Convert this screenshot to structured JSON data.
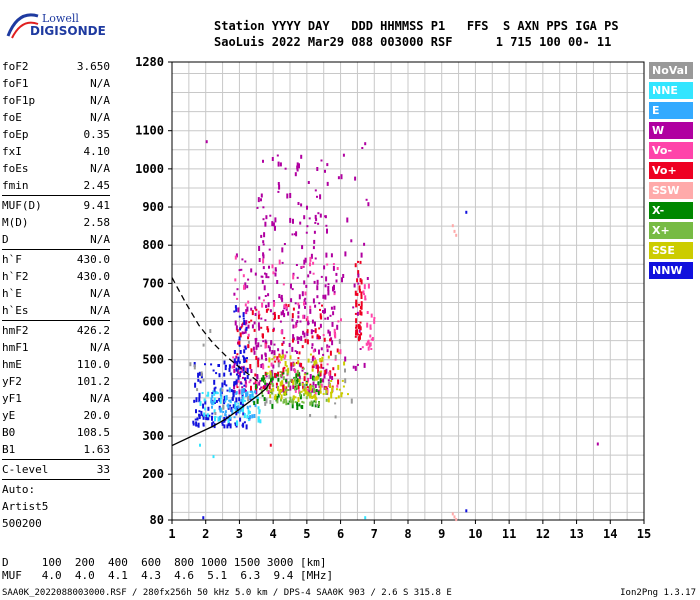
{
  "logo": {
    "line1": "Lowell",
    "line2": "DIGISONDE"
  },
  "header": {
    "line1": "Station YYYY DAY   DDD HHMMSS P1   FFS  S AXN PPS IGA PS",
    "line2": "SaoLuis 2022 Mar29 088 003000 RSF      1 715 100 00- 11"
  },
  "params": [
    {
      "label": "foF2",
      "value": "3.650"
    },
    {
      "label": "foF1",
      "value": "N/A"
    },
    {
      "label": "foF1p",
      "value": "N/A"
    },
    {
      "label": "foE",
      "value": "N/A"
    },
    {
      "label": "foEp",
      "value": "0.35"
    },
    {
      "label": "fxI",
      "value": "4.10"
    },
    {
      "label": "foEs",
      "value": "N/A"
    },
    {
      "label": "fmin",
      "value": "2.45",
      "sep": true
    },
    {
      "label": "MUF(D)",
      "value": "9.41"
    },
    {
      "label": "M(D)",
      "value": "2.58"
    },
    {
      "label": "D",
      "value": "N/A",
      "sep": true
    },
    {
      "label": "h`F",
      "value": "430.0"
    },
    {
      "label": "h`F2",
      "value": "430.0"
    },
    {
      "label": "h`E",
      "value": "N/A"
    },
    {
      "label": "h`Es",
      "value": "N/A",
      "sep": true
    },
    {
      "label": "hmF2",
      "value": "426.2"
    },
    {
      "label": "hmF1",
      "value": "N/A"
    },
    {
      "label": "hmE",
      "value": "110.0"
    },
    {
      "label": "yF2",
      "value": "101.2"
    },
    {
      "label": "yF1",
      "value": "N/A"
    },
    {
      "label": "yE",
      "value": "20.0"
    },
    {
      "label": "B0",
      "value": "108.5"
    },
    {
      "label": "B1",
      "value": "1.63",
      "sep": true
    },
    {
      "label": "C-level",
      "value": "33",
      "sep": true
    },
    {
      "label": "Auto:",
      "value": ""
    },
    {
      "label": "Artist5",
      "value": ""
    },
    {
      "label": "500200",
      "value": ""
    }
  ],
  "legend": [
    {
      "label": "NoVal",
      "color": "#999999"
    },
    {
      "label": "NNE",
      "color": "#33e5ff"
    },
    {
      "label": "E",
      "color": "#33aaff"
    },
    {
      "label": "W",
      "color": "#b000a0"
    },
    {
      "label": "Vo-",
      "color": "#ff44aa"
    },
    {
      "label": "Vo+",
      "color": "#ee0022"
    },
    {
      "label": "SSW",
      "color": "#ffaaaa"
    },
    {
      "label": "X-",
      "color": "#008800"
    },
    {
      "label": "X+",
      "color": "#77bb44"
    },
    {
      "label": "SSE",
      "color": "#cccc00"
    },
    {
      "label": "NNW",
      "color": "#1010dd"
    }
  ],
  "muf_table": {
    "d_line": "D     100  200  400  600  800 1000 1500 3000 [km]",
    "muf_line": "MUF   4.0  4.0  4.1  4.3  4.6  5.1  6.3  9.4 [MHz]"
  },
  "footer": "SAA0K_2022088003000.RSF / 280fx256h 50 kHz 5.0 km / DPS-4 SAA0K 903 / 2.6 S 315.8 E",
  "version": "Ion2Png 1.3.17",
  "chart_data": {
    "type": "scatter",
    "title": "",
    "xlabel": "",
    "ylabel": "",
    "xlim": [
      1,
      15
    ],
    "ylim": [
      80,
      1280
    ],
    "x_ticks": [
      1,
      2,
      3,
      4,
      5,
      6,
      7,
      8,
      9,
      10,
      11,
      12,
      13,
      14,
      15
    ],
    "y_ticks": [
      80,
      200,
      300,
      400,
      500,
      600,
      700,
      800,
      900,
      1000,
      1100,
      1280
    ],
    "grid": true,
    "legend_placement": "right",
    "traces": [
      {
        "name": "profile",
        "style": "solid",
        "color": "#000000",
        "points": [
          [
            1.0,
            275
          ],
          [
            1.6,
            300
          ],
          [
            2.2,
            325
          ],
          [
            2.6,
            345
          ],
          [
            3.0,
            370
          ],
          [
            3.3,
            390
          ],
          [
            3.6,
            410
          ],
          [
            3.8,
            425
          ],
          [
            3.9,
            440
          ]
        ]
      },
      {
        "name": "dashed",
        "style": "dashed",
        "color": "#000000",
        "points": [
          [
            1.0,
            715
          ],
          [
            1.4,
            650
          ],
          [
            1.8,
            590
          ],
          [
            2.2,
            545
          ],
          [
            2.6,
            510
          ],
          [
            3.0,
            480
          ],
          [
            3.3,
            460
          ],
          [
            3.6,
            440
          ]
        ]
      }
    ],
    "point_clusters": [
      {
        "color": "#b000a0",
        "x": [
          2.8,
          5.8
        ],
        "y": [
          420,
          800
        ],
        "n": 320
      },
      {
        "color": "#b000a0",
        "x": [
          3.5,
          5.7
        ],
        "y": [
          800,
          1050
        ],
        "n": 70
      },
      {
        "color": "#ee0022",
        "x": [
          2.9,
          5.9
        ],
        "y": [
          430,
          650
        ],
        "n": 120
      },
      {
        "color": "#ff44aa",
        "x": [
          2.7,
          6.0
        ],
        "y": [
          420,
          780
        ],
        "n": 90
      },
      {
        "color": "#1010dd",
        "x": [
          1.6,
          3.3
        ],
        "y": [
          330,
          500
        ],
        "n": 140
      },
      {
        "color": "#1010dd",
        "x": [
          2.8,
          3.2
        ],
        "y": [
          500,
          650
        ],
        "n": 25
      },
      {
        "color": "#33e5ff",
        "x": [
          1.8,
          3.6
        ],
        "y": [
          340,
          420
        ],
        "n": 60
      },
      {
        "color": "#33aaff",
        "x": [
          2.0,
          3.5
        ],
        "y": [
          350,
          430
        ],
        "n": 50
      },
      {
        "color": "#008800",
        "x": [
          3.4,
          5.4
        ],
        "y": [
          380,
          470
        ],
        "n": 60
      },
      {
        "color": "#77bb44",
        "x": [
          3.6,
          5.6
        ],
        "y": [
          390,
          480
        ],
        "n": 60
      },
      {
        "color": "#cccc00",
        "x": [
          3.8,
          6.2
        ],
        "y": [
          400,
          520
        ],
        "n": 90
      },
      {
        "color": "#999999",
        "x": [
          1.5,
          6.5
        ],
        "y": [
          350,
          600
        ],
        "n": 30
      },
      {
        "color": "#ee0022",
        "x": [
          6.4,
          6.6
        ],
        "y": [
          560,
          760
        ],
        "n": 40
      },
      {
        "color": "#ff44aa",
        "x": [
          6.6,
          7.0
        ],
        "y": [
          520,
          700
        ],
        "n": 25
      },
      {
        "color": "#b000a0",
        "x": [
          5.8,
          6.8
        ],
        "y": [
          480,
          1060
        ],
        "n": 30
      }
    ],
    "sparse_points": [
      {
        "x": 9.3,
        "y": 855,
        "color": "#ffaaaa"
      },
      {
        "x": 9.35,
        "y": 840,
        "color": "#ffaaaa"
      },
      {
        "x": 9.4,
        "y": 830,
        "color": "#ffaaaa"
      },
      {
        "x": 9.7,
        "y": 890,
        "color": "#1010dd"
      },
      {
        "x": 9.3,
        "y": 100,
        "color": "#ffaaaa"
      },
      {
        "x": 9.35,
        "y": 92,
        "color": "#ffaaaa"
      },
      {
        "x": 9.4,
        "y": 85,
        "color": "#ffaaaa"
      },
      {
        "x": 9.7,
        "y": 108,
        "color": "#1010dd"
      },
      {
        "x": 13.6,
        "y": 283,
        "color": "#b000a0"
      },
      {
        "x": 1.9,
        "y": 90,
        "color": "#1010dd"
      },
      {
        "x": 2.0,
        "y": 1075,
        "color": "#b000a0"
      },
      {
        "x": 6.7,
        "y": 90,
        "color": "#33e5ff"
      },
      {
        "x": 6.7,
        "y": 1070,
        "color": "#b000a0"
      },
      {
        "x": 3.9,
        "y": 280,
        "color": "#ee0022"
      },
      {
        "x": 2.2,
        "y": 250,
        "color": "#33e5ff"
      },
      {
        "x": 1.8,
        "y": 280,
        "color": "#33e5ff"
      },
      {
        "x": 7.1,
        "y": 60,
        "color": "#b000a0"
      }
    ]
  }
}
